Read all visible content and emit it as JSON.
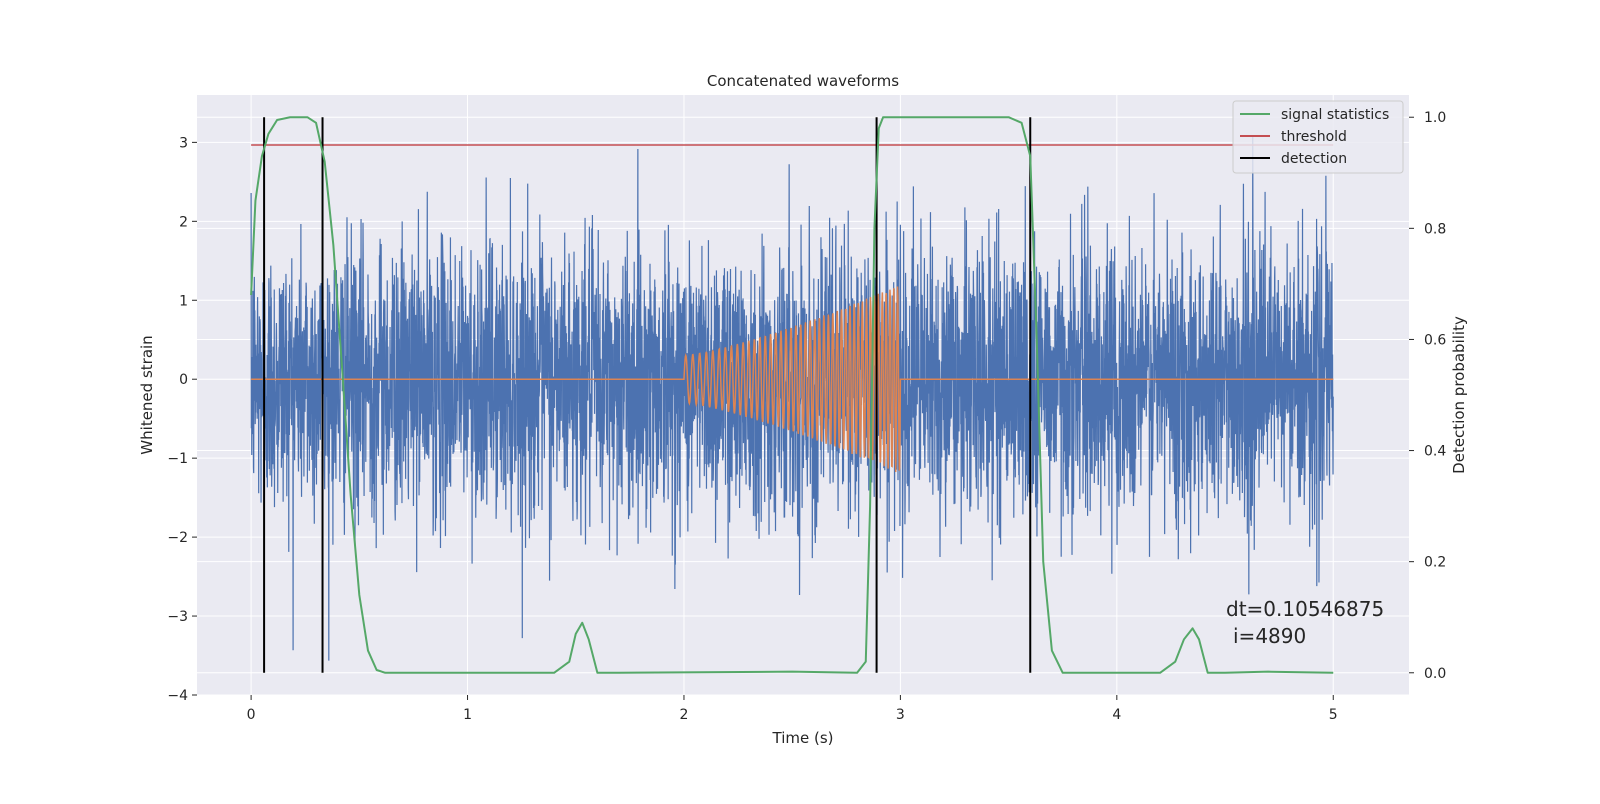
{
  "chart_data": {
    "type": "line",
    "title": "Concatenated waveforms",
    "xlabel": "Time (s)",
    "ylabel_left": "Whitened strain",
    "ylabel_right": "Detection probability",
    "xlim": [
      -0.25,
      5.35
    ],
    "ylim_left": [
      -4.0,
      3.6
    ],
    "ylim_right": [
      -0.04,
      1.04
    ],
    "xticks": [
      "0",
      "1",
      "2",
      "3",
      "4",
      "5"
    ],
    "yticks_left": [
      "3",
      "2",
      "1",
      "0",
      "−1",
      "−2",
      "−3",
      "−4"
    ],
    "yticks_right": [
      "1.0",
      "0.8",
      "0.6",
      "0.4",
      "0.2",
      "0.0"
    ],
    "grid": true,
    "legend_position": "top-right",
    "colors": {
      "noise": "#4c72b0",
      "template": "#dd8452",
      "signal_statistics": "#55a868",
      "threshold": "#c44e52",
      "detection": "#000000",
      "axes_bg": "#eaeaf2",
      "grid": "#ffffff"
    },
    "series": [
      {
        "name": "signal statistics",
        "axis": "right",
        "x": [
          0.0,
          0.02,
          0.05,
          0.08,
          0.12,
          0.18,
          0.26,
          0.3,
          0.34,
          0.38,
          0.42,
          0.46,
          0.5,
          0.54,
          0.58,
          0.62,
          1.4,
          1.47,
          1.5,
          1.53,
          1.56,
          1.6,
          1.7,
          2.5,
          2.8,
          2.84,
          2.86,
          2.88,
          2.9,
          2.92,
          3.0,
          3.5,
          3.56,
          3.6,
          3.63,
          3.66,
          3.7,
          3.75,
          4.2,
          4.27,
          4.31,
          4.35,
          4.38,
          4.42,
          4.5,
          4.7,
          5.0
        ],
        "y": [
          0.68,
          0.85,
          0.93,
          0.97,
          0.995,
          1.0,
          1.0,
          0.99,
          0.92,
          0.77,
          0.55,
          0.32,
          0.14,
          0.04,
          0.005,
          0.0,
          0.0,
          0.02,
          0.07,
          0.09,
          0.06,
          0.0,
          0.0,
          0.002,
          0.0,
          0.02,
          0.3,
          0.8,
          0.98,
          1.0,
          1.0,
          1.0,
          0.99,
          0.93,
          0.6,
          0.2,
          0.04,
          0.0,
          0.0,
          0.02,
          0.06,
          0.08,
          0.06,
          0.0,
          0.0,
          0.002,
          0.0
        ]
      },
      {
        "name": "threshold",
        "axis": "right",
        "x": [
          0.0,
          5.0
        ],
        "y": [
          0.95,
          0.95
        ]
      },
      {
        "name": "detection",
        "axis": "right",
        "x": [
          0.06,
          0.33,
          2.89,
          3.6
        ],
        "y_range": [
          0.0,
          1.0
        ]
      }
    ],
    "noise_series": {
      "axis": "left",
      "x_range": [
        0.0,
        5.0
      ],
      "amplitude_std": 0.85,
      "peak": 3.4
    },
    "template_series": {
      "axis": "left",
      "x_range": [
        0.0,
        5.0
      ],
      "chirp_start": 2.0,
      "chirp_end": 3.0,
      "amplitude_start": 0.3,
      "amplitude_end": 1.2
    },
    "legend": [
      "signal statistics",
      "threshold",
      "detection"
    ],
    "annotations": {
      "dt": "dt=0.10546875",
      "i": "i=4890"
    }
  }
}
